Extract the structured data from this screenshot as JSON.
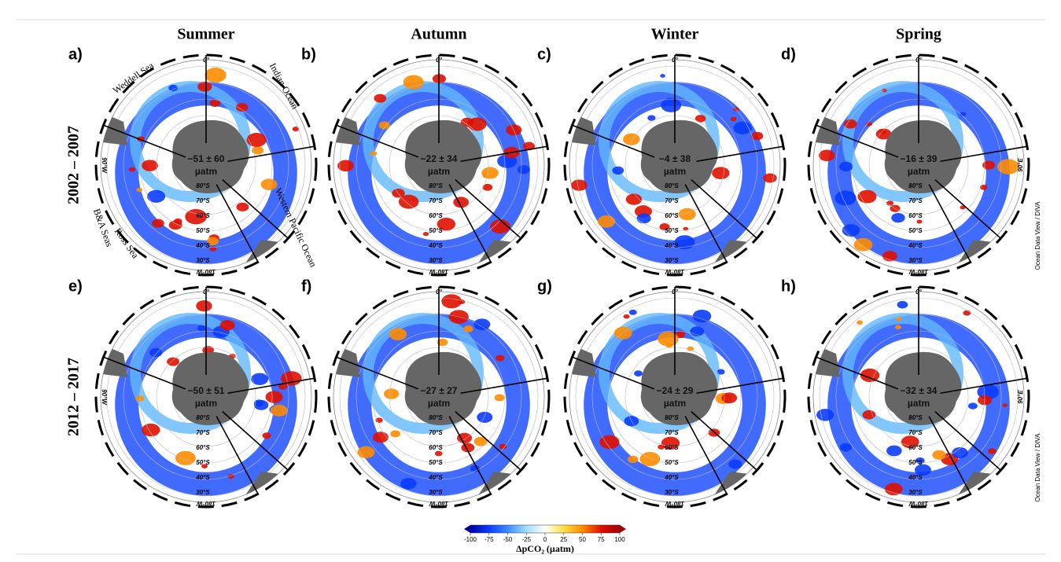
{
  "columns": [
    "Summer",
    "Autumn",
    "Winter",
    "Spring"
  ],
  "rows": [
    "2002 – 2007",
    "2012 – 2017"
  ],
  "panels": [
    {
      "label": "a)",
      "mean": "−51 ± 60"
    },
    {
      "label": "b)",
      "mean": "−22 ± 34"
    },
    {
      "label": "c)",
      "mean": "−4 ± 38"
    },
    {
      "label": "d)",
      "mean": "−16 ± 39"
    },
    {
      "label": "e)",
      "mean": "−50 ± 51"
    },
    {
      "label": "f)",
      "mean": "−27 ± 27"
    },
    {
      "label": "g)",
      "mean": "−24 ± 29"
    },
    {
      "label": "h)",
      "mean": "−32 ± 34"
    }
  ],
  "unit": "µatm",
  "lat_labels": [
    "80°S",
    "70°S",
    "60°S",
    "50°S",
    "40°S",
    "30°S"
  ],
  "lon_labels": {
    "top": "0°",
    "bottom": "180°W",
    "left": "90°W",
    "right": "90°E"
  },
  "region_labels": [
    "Weddell Sea",
    "Indian Ocean",
    "Western Pacific Ocean",
    "Ross Sea",
    "B&A Seas"
  ],
  "credit": "Ocean Data View / DIVA",
  "colorbar": {
    "label": "ΔpCO₂ (µatm)",
    "lim": [
      -100,
      100
    ],
    "ticks": [
      -100,
      -75,
      -50,
      -25,
      0,
      25,
      50,
      75,
      100
    ],
    "colors": [
      "#0000a0",
      "#0a3cff",
      "#3c8cff",
      "#a0dcff",
      "#ffffff",
      "#ffe040",
      "#ff8c00",
      "#e01000",
      "#a00000"
    ]
  }
}
